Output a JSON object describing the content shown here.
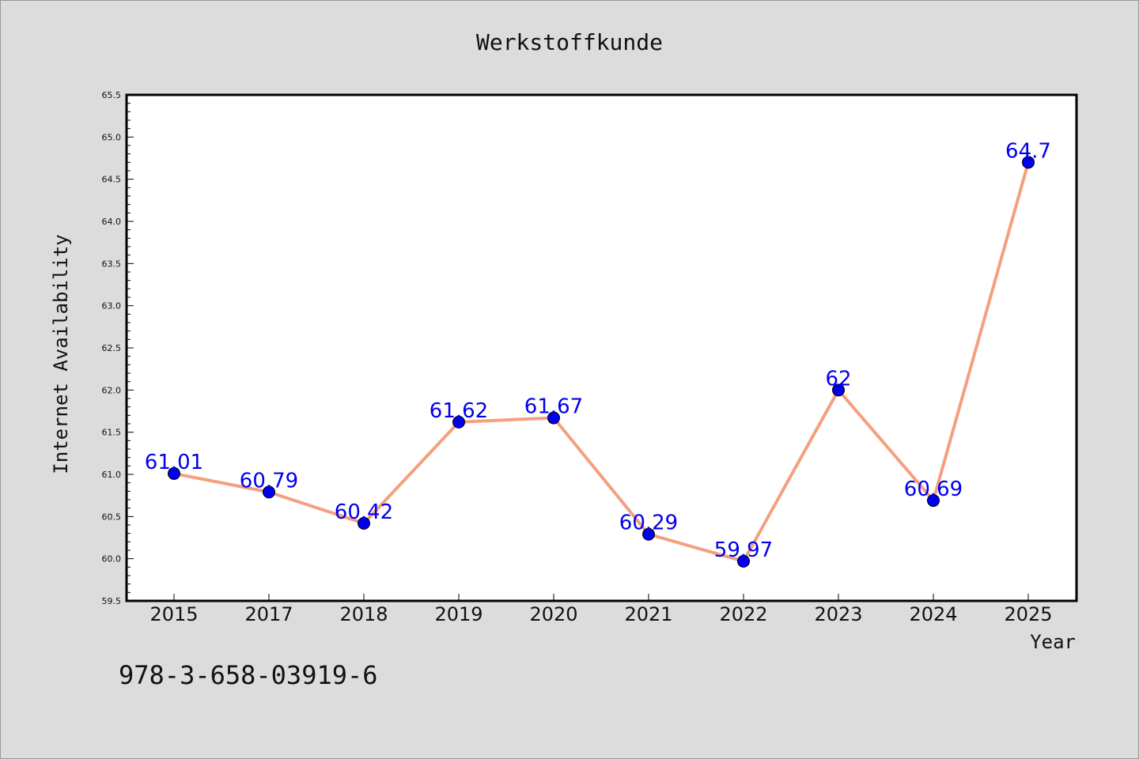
{
  "chart_data": {
    "type": "line",
    "title": "Werkstoffkunde",
    "xlabel": "Year",
    "ylabel": "Internet Availability",
    "categories": [
      "2015",
      "2017",
      "2018",
      "2019",
      "2020",
      "2021",
      "2022",
      "2023",
      "2024",
      "2025"
    ],
    "series": [
      {
        "values": [
          61.01,
          60.79,
          60.42,
          61.62,
          61.67,
          60.29,
          59.97,
          62,
          60.69,
          64.7
        ],
        "labels": [
          "61.01",
          "60.79",
          "60.42",
          "61.62",
          "61.67",
          "60.29",
          "59.97",
          "62",
          "60.69",
          "64.7"
        ],
        "line_color": "#f4a07e",
        "marker_color": "#0000ee",
        "label_color": "#0000ee"
      }
    ],
    "ylim": [
      59.5,
      65.5
    ],
    "yticks": [
      "59.5",
      "60.0",
      "60.5",
      "61.0",
      "61.5",
      "62.0",
      "62.5",
      "63.0",
      "63.5",
      "64.0",
      "64.5",
      "65.0",
      "65.5"
    ],
    "grid": false,
    "legend": "none"
  },
  "footer_text": "978-3-658-03919-6",
  "colors": {
    "background": "#dcdcdc",
    "plot_background": "#ffffff",
    "axes": "#000000"
  }
}
